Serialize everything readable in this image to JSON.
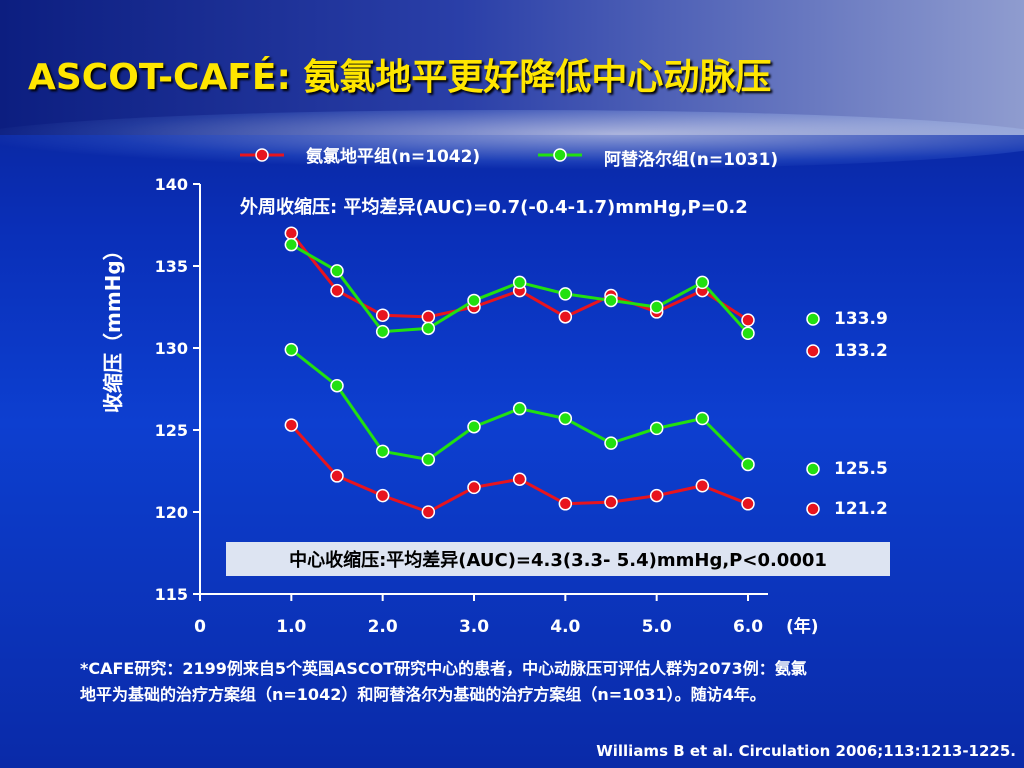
{
  "slide": {
    "title": "ASCOT-CAFÉ: 氨氯地平更好降低中心动脉压",
    "footnote_line1": "*CAFE研究：2199例来自5个英国ASCOT研究中心的患者，中心动脉压可评估人群为2073例：氨氯",
    "footnote_line2": "地平为基础的治疗方案组（n=1042）和阿替洛尔为基础的治疗方案组（n=1031）。随访4年。",
    "citation": "Williams B et al. Circulation 2006;113:1213-1225."
  },
  "chart_data": {
    "type": "line",
    "ylabel": "收缩压（mmHg）",
    "xunit_label": "(年)",
    "ylim": [
      115,
      140
    ],
    "yticks": [
      115,
      120,
      125,
      130,
      135,
      140
    ],
    "xticks": [
      {
        "v": 0,
        "label": "0"
      },
      {
        "v": 1,
        "label": "1.0"
      },
      {
        "v": 2,
        "label": "2.0"
      },
      {
        "v": 3,
        "label": "3.0"
      },
      {
        "v": 4,
        "label": "4.0"
      },
      {
        "v": 5,
        "label": "5.0"
      },
      {
        "v": 6,
        "label": "6.0"
      }
    ],
    "x": [
      1.0,
      1.5,
      2.0,
      2.5,
      3.0,
      3.5,
      4.0,
      4.5,
      5.0,
      5.5,
      6.0
    ],
    "legend": {
      "amlodipine": "氨氯地平组(n=1042)",
      "atenolol": "阿替洛尔组(n=1031)"
    },
    "annotations": {
      "peripheral": "外周收缩压: 平均差异(AUC)=0.7(-0.4-1.7)mmHg,P=0.2",
      "central": "中心收缩压:平均差异(AUC)=4.3(3.3- 5.4)mmHg,P<0.0001"
    },
    "series": [
      {
        "name": "氨氯地平组(n=1042)",
        "group": "peripheral",
        "color": "#e8141e",
        "values": [
          137.0,
          133.5,
          132.0,
          131.9,
          132.5,
          133.5,
          131.9,
          133.2,
          132.2,
          133.5,
          131.7
        ],
        "end_label": "133.2"
      },
      {
        "name": "阿替洛尔组(n=1031)",
        "group": "peripheral",
        "color": "#22e010",
        "values": [
          136.3,
          134.7,
          131.0,
          131.2,
          132.9,
          134.0,
          133.3,
          132.9,
          132.5,
          134.0,
          130.9
        ],
        "end_label": "133.9"
      },
      {
        "name": "阿替洛尔组(n=1031)",
        "group": "central",
        "color": "#22e010",
        "values": [
          129.9,
          127.7,
          123.7,
          123.2,
          125.2,
          126.3,
          125.7,
          124.2,
          125.1,
          125.7,
          122.9
        ],
        "end_label": "125.5"
      },
      {
        "name": "氨氯地平组(n=1042)",
        "group": "central",
        "color": "#e8141e",
        "values": [
          125.3,
          122.2,
          121.0,
          120.0,
          121.5,
          122.0,
          120.5,
          120.6,
          121.0,
          121.6,
          120.5
        ],
        "end_label": "121.2"
      }
    ],
    "end_markers": [
      {
        "label": "133.9",
        "color": "#22e010"
      },
      {
        "label": "133.2",
        "color": "#e8141e"
      },
      {
        "label": "125.5",
        "color": "#22e010"
      },
      {
        "label": "121.2",
        "color": "#e8141e"
      }
    ]
  }
}
